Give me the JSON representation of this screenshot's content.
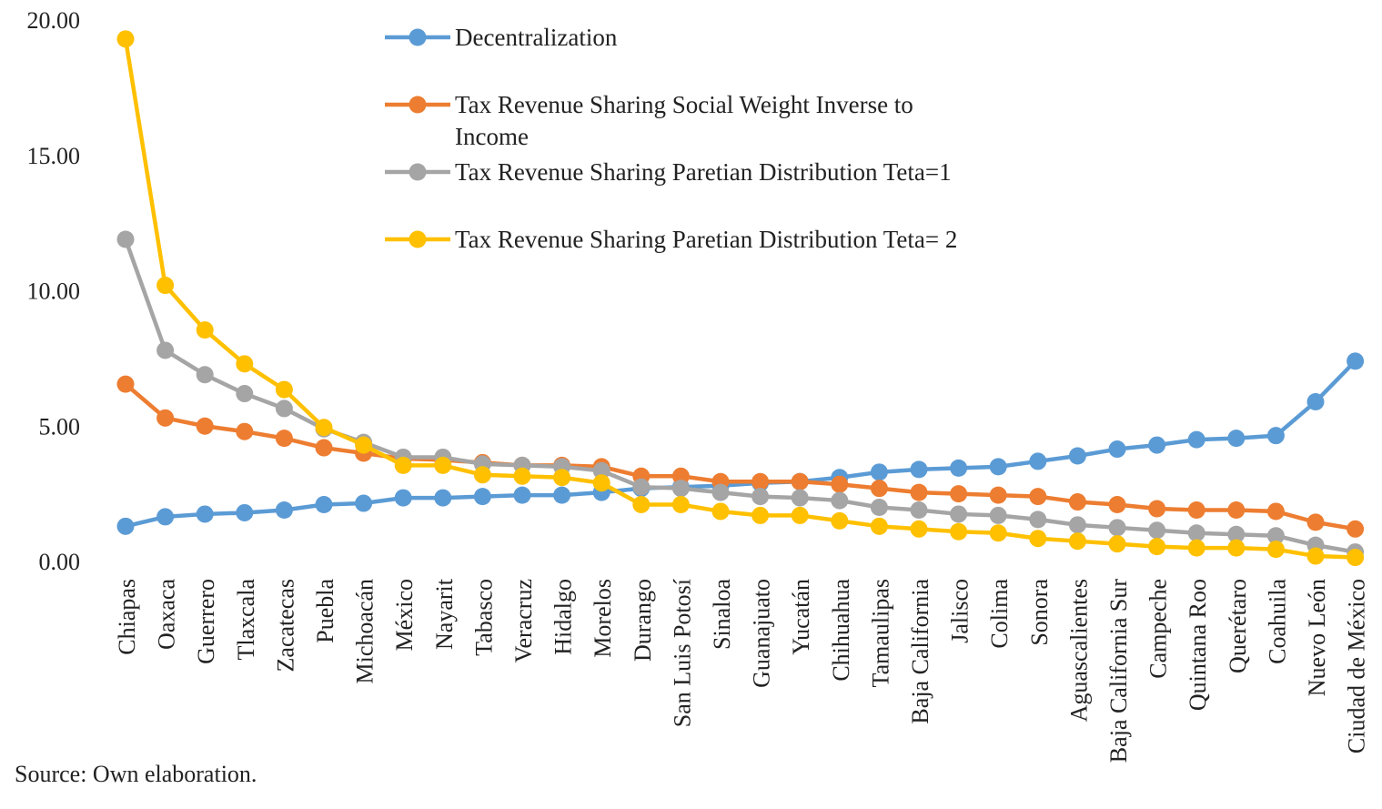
{
  "chart_data": {
    "type": "line",
    "title": "",
    "xlabel": "",
    "ylabel": "",
    "ylim": [
      0,
      20
    ],
    "yticks": [
      "0.00",
      "5.00",
      "10.00",
      "15.00",
      "20.00"
    ],
    "categories": [
      "Chiapas",
      "Oaxaca",
      "Guerrero",
      "Tlaxcala",
      "Zacatecas",
      "Puebla",
      "Michoacán",
      "México",
      "Nayarit",
      "Tabasco",
      "Veracruz",
      "Hidalgo",
      "Morelos",
      "Durango",
      "San Luis Potosí",
      "Sinaloa",
      "Guanajuato",
      "Yucatán",
      "Chihuahua",
      "Tamaulipas",
      "Baja California",
      "Jalisco",
      "Colima",
      "Sonora",
      "Aguascalientes",
      "Baja California Sur",
      "Campeche",
      "Quintana Roo",
      "Querétaro",
      "Coahuila",
      "Nuevo León",
      "Ciudad de México"
    ],
    "series": [
      {
        "name": "Decentralization",
        "color": "#5B9BD5",
        "values": [
          1.3,
          1.65,
          1.75,
          1.8,
          1.9,
          2.1,
          2.15,
          2.35,
          2.35,
          2.4,
          2.45,
          2.45,
          2.55,
          2.7,
          2.75,
          2.8,
          2.9,
          2.95,
          3.1,
          3.3,
          3.4,
          3.45,
          3.5,
          3.7,
          3.9,
          4.15,
          4.3,
          4.5,
          4.55,
          4.65,
          5.9,
          7.4
        ]
      },
      {
        "name": "Tax Revenue Sharing Social Weight Inverse to Income",
        "color": "#ED7D31",
        "values": [
          6.55,
          5.3,
          5.0,
          4.8,
          4.55,
          4.2,
          4.0,
          3.8,
          3.75,
          3.65,
          3.55,
          3.55,
          3.5,
          3.15,
          3.15,
          2.95,
          2.95,
          2.95,
          2.85,
          2.7,
          2.55,
          2.5,
          2.45,
          2.4,
          2.2,
          2.1,
          1.95,
          1.9,
          1.9,
          1.85,
          1.45,
          1.2
        ]
      },
      {
        "name": "Tax Revenue Sharing Paretian Distribution Teta=1",
        "color": "#A5A5A5",
        "values": [
          11.9,
          7.8,
          6.9,
          6.2,
          5.65,
          4.9,
          4.4,
          3.85,
          3.85,
          3.6,
          3.55,
          3.5,
          3.35,
          2.75,
          2.7,
          2.55,
          2.4,
          2.35,
          2.25,
          2.0,
          1.9,
          1.75,
          1.7,
          1.55,
          1.35,
          1.25,
          1.15,
          1.05,
          1.0,
          0.95,
          0.6,
          0.35
        ]
      },
      {
        "name": "Tax Revenue Sharing Paretian Distribution Teta= 2",
        "color": "#FFC000",
        "values": [
          19.3,
          10.2,
          8.55,
          7.3,
          6.35,
          4.95,
          4.3,
          3.55,
          3.55,
          3.2,
          3.15,
          3.1,
          2.9,
          2.1,
          2.1,
          1.85,
          1.7,
          1.7,
          1.5,
          1.3,
          1.2,
          1.1,
          1.05,
          0.85,
          0.75,
          0.65,
          0.55,
          0.5,
          0.5,
          0.45,
          0.2,
          0.15
        ]
      }
    ],
    "legend": [
      [
        "Decentralization"
      ],
      [
        "Tax Revenue Sharing Social  Weight Inverse to",
        "Income"
      ],
      [
        "Tax Revenue Sharing Paretian Distribution Teta=1"
      ],
      [
        "Tax Revenue Sharing Paretian Distribution Teta= 2"
      ]
    ],
    "legend_position": "top-center",
    "source": "Source: Own elaboration."
  }
}
